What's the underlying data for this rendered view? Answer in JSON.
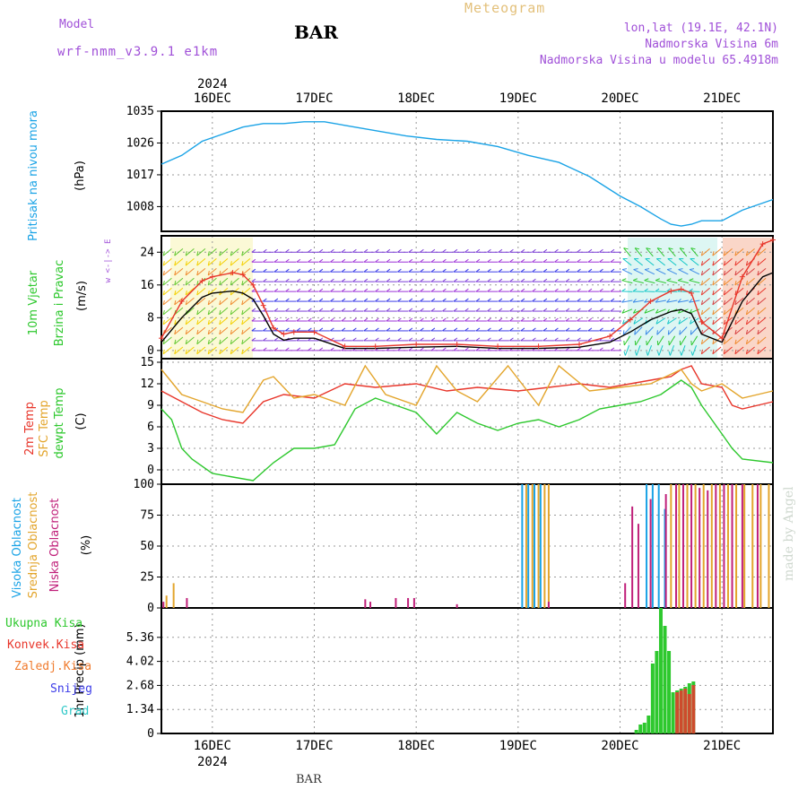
{
  "header": {
    "model_caption": "Model",
    "model_name": "wrf-nmm_v3.9.1 e1km",
    "station": "BAR",
    "title": "Meteogram",
    "lonlat": "lon,lat (19.1E, 42.1N)",
    "elevation": "Nadmorska Visina 6m",
    "model_elevation": "Nadmorska Visina u modelu 65.4918m",
    "credit": "made by Angel",
    "footer_station": "BAR"
  },
  "time_axis": {
    "year": "2024",
    "day_labels": [
      "16DEC",
      "17DEC",
      "18DEC",
      "19DEC",
      "20DEC",
      "21DEC"
    ],
    "day_positions": [
      1,
      2,
      3,
      4,
      5,
      6
    ],
    "xlim": [
      0.5,
      6.5
    ]
  },
  "colors": {
    "pressure": "#1aa3e6",
    "wind_speed": "#000000",
    "wind_gust": "#e8362b",
    "t2m": "#e8362b",
    "tsfc": "#e3a52c",
    "dewpoint": "#2ec82e",
    "cloud_high": "#1aa3e6",
    "cloud_mid": "#e3a52c",
    "cloud_low": "#c0207a",
    "precip_total": "#2ec82e",
    "precip_conv": "#e8362b",
    "precip_strat": "#f07b2e",
    "precip_snow": "#3b3be8",
    "precip_hail": "#2ec8c8",
    "label_pressure": "#1aa3e6",
    "label_wind": "#2ec82e",
    "label_header": "#a050d8",
    "label_title": "#e3c07a"
  },
  "chart_data": [
    {
      "type": "line",
      "panel": "pressure",
      "ylabel_name": "Pritisak na nivou mora",
      "ylabel_unit": "(hPa)",
      "yticks": [
        1008,
        1017,
        1026,
        1035
      ],
      "ylim": [
        1001,
        1035
      ],
      "series": [
        {
          "x": [
            0.5,
            0.7,
            0.9,
            1.1,
            1.3,
            1.5,
            1.7,
            1.9,
            2.1,
            2.3,
            2.6,
            2.9,
            3.2,
            3.5,
            3.8,
            4.1,
            4.4,
            4.7,
            5.0,
            5.2,
            5.4,
            5.5,
            5.6,
            5.7,
            5.8,
            5.9,
            6.0,
            6.1,
            6.2,
            6.3,
            6.5
          ],
          "values": [
            1020.0,
            1022.5,
            1026.5,
            1028.5,
            1030.5,
            1031.5,
            1031.5,
            1032.0,
            1032.0,
            1031.0,
            1029.5,
            1028.0,
            1027.0,
            1026.5,
            1025.0,
            1022.5,
            1020.5,
            1016.5,
            1011.0,
            1008.0,
            1004.5,
            1003.0,
            1002.5,
            1003.0,
            1004.0,
            1004.0,
            1004.0,
            1005.5,
            1007.0,
            1008.0,
            1010.0
          ]
        }
      ]
    },
    {
      "type": "line",
      "panel": "wind",
      "ylabel_name_1": "10m Vjetar",
      "ylabel_name_2": "Brzina i Pravac",
      "ylabel_unit": "(m/s)",
      "compass": "w <-|-> E",
      "yticks": [
        0,
        8,
        16,
        24
      ],
      "ylim": [
        -2,
        28
      ],
      "series": [
        {
          "name": "speed",
          "x": [
            0.5,
            0.7,
            0.9,
            1.0,
            1.2,
            1.3,
            1.4,
            1.5,
            1.6,
            1.7,
            1.8,
            2.0,
            2.3,
            2.6,
            3.0,
            3.4,
            3.8,
            4.2,
            4.6,
            4.9,
            5.1,
            5.3,
            5.5,
            5.6,
            5.7,
            5.8,
            6.0,
            6.2,
            6.4,
            6.5
          ],
          "values": [
            2,
            8,
            13,
            14,
            14.5,
            14,
            12.5,
            8.5,
            4,
            2.5,
            3,
            3,
            0.5,
            0.5,
            0.8,
            1,
            0.5,
            0.5,
            0.8,
            2,
            4.5,
            7.5,
            9.5,
            10,
            9,
            4,
            2,
            12,
            18,
            19
          ]
        },
        {
          "name": "gust",
          "x": [
            0.5,
            0.7,
            0.9,
            1.0,
            1.2,
            1.3,
            1.4,
            1.5,
            1.6,
            1.7,
            1.8,
            2.0,
            2.3,
            2.6,
            3.0,
            3.4,
            3.8,
            4.2,
            4.6,
            4.9,
            5.1,
            5.3,
            5.5,
            5.6,
            5.7,
            5.8,
            6.0,
            6.2,
            6.4,
            6.5
          ],
          "values": [
            3,
            12,
            17,
            18,
            19,
            18.5,
            16,
            11,
            5.5,
            4,
            4.5,
            4.5,
            1,
            1,
            1.5,
            1.5,
            1,
            1,
            1.5,
            3.5,
            7.5,
            12,
            14.5,
            15,
            14,
            7,
            3,
            18,
            26,
            27
          ]
        }
      ]
    },
    {
      "type": "line",
      "panel": "temperature",
      "ylabel_name_1": "2m Temp",
      "ylabel_name_2": "SFC Temp",
      "ylabel_name_3": "dewpt Temp",
      "ylabel_unit": "(C)",
      "yticks": [
        0,
        3,
        6,
        9,
        12,
        15
      ],
      "ylim": [
        -2,
        15.5
      ],
      "series": [
        {
          "name": "2m Temp",
          "x": [
            0.5,
            0.7,
            0.9,
            1.1,
            1.3,
            1.5,
            1.7,
            2.0,
            2.3,
            2.6,
            3.0,
            3.3,
            3.6,
            4.0,
            4.3,
            4.6,
            4.9,
            5.1,
            5.3,
            5.5,
            5.6,
            5.7,
            5.8,
            6.0,
            6.1,
            6.2,
            6.5
          ],
          "values": [
            11,
            9.5,
            8,
            7,
            6.5,
            9.5,
            10.5,
            10,
            12,
            11.5,
            12,
            11,
            11.5,
            11,
            11.5,
            12,
            11.5,
            12,
            12.5,
            13,
            14,
            14.5,
            12,
            11.5,
            9,
            8.5,
            9.5
          ]
        },
        {
          "name": "SFC Temp",
          "x": [
            0.5,
            0.7,
            0.9,
            1.1,
            1.3,
            1.5,
            1.6,
            1.8,
            2.0,
            2.3,
            2.5,
            2.7,
            3.0,
            3.2,
            3.4,
            3.6,
            3.9,
            4.2,
            4.4,
            4.7,
            5.0,
            5.3,
            5.6,
            5.7,
            5.8,
            6.0,
            6.2,
            6.5
          ],
          "values": [
            14,
            10.5,
            9.5,
            8.5,
            8,
            12.5,
            13,
            10,
            10.5,
            9,
            14.5,
            10.5,
            9,
            14.5,
            11,
            9.5,
            14.5,
            9,
            14.5,
            11,
            11.5,
            12,
            14,
            12,
            11,
            12,
            10,
            11
          ]
        },
        {
          "name": "dewpt Temp",
          "x": [
            0.5,
            0.6,
            0.7,
            0.8,
            1.0,
            1.2,
            1.4,
            1.6,
            1.8,
            2.0,
            2.2,
            2.4,
            2.6,
            2.8,
            3.0,
            3.2,
            3.4,
            3.6,
            3.8,
            4.0,
            4.2,
            4.4,
            4.6,
            4.8,
            5.0,
            5.2,
            5.4,
            5.5,
            5.6,
            5.7,
            5.8,
            6.0,
            6.1,
            6.2,
            6.5
          ],
          "values": [
            8.5,
            7,
            3,
            1.5,
            -0.5,
            -1,
            -1.5,
            1,
            3,
            3,
            3.5,
            8.5,
            10,
            9,
            8,
            5,
            8,
            6.5,
            5.5,
            6.5,
            7,
            6,
            7,
            8.5,
            9,
            9.5,
            10.5,
            11.5,
            12.5,
            11.5,
            9,
            5,
            3,
            1.5,
            1
          ]
        }
      ]
    },
    {
      "type": "bar",
      "panel": "cloud",
      "ylabel_name_1": "Visoka Oblacnost",
      "ylabel_name_2": "Srednja Oblacnost",
      "ylabel_name_3": "Niska Oblacnost",
      "ylabel_unit": "(%)",
      "yticks": [
        0,
        25,
        50,
        75,
        100
      ],
      "ylim": [
        0,
        100
      ],
      "series": [
        {
          "name": "high",
          "x": [
            4.04,
            4.1,
            4.16,
            4.22,
            5.26,
            5.32,
            5.38,
            5.44
          ],
          "values": [
            100,
            100,
            100,
            100,
            100,
            100,
            100,
            80
          ]
        },
        {
          "name": "mid",
          "x": [
            0.55,
            0.62,
            4.08,
            4.14,
            4.2,
            4.26,
            4.3,
            5.5,
            5.58,
            5.66,
            5.74,
            5.82,
            5.9,
            5.98,
            6.06,
            6.14,
            6.22,
            6.3,
            6.38,
            6.46
          ],
          "values": [
            10,
            20,
            100,
            100,
            100,
            100,
            100,
            100,
            100,
            100,
            100,
            100,
            100,
            100,
            100,
            100,
            100,
            100,
            100,
            100
          ]
        },
        {
          "name": "low",
          "x": [
            0.52,
            0.75,
            2.5,
            2.55,
            2.8,
            2.92,
            2.98,
            3.4,
            4.3,
            5.05,
            5.12,
            5.18,
            5.3,
            5.45,
            5.55,
            5.62,
            5.7,
            5.78,
            5.86,
            5.94,
            6.02,
            6.1,
            6.2,
            6.35
          ],
          "values": [
            5,
            8,
            7,
            5,
            8,
            8,
            8,
            3,
            5,
            20,
            82,
            68,
            88,
            92,
            100,
            100,
            100,
            97,
            95,
            100,
            100,
            100,
            100,
            100
          ]
        }
      ]
    },
    {
      "type": "bar",
      "panel": "precip",
      "ylabel_unit": "1hr Precip (mm)",
      "legend": [
        "Ukupna Kisa",
        "Konvek.Kisa",
        "Zaledj.Kisa",
        "Snijeg",
        "Grad"
      ],
      "yticks": [
        0,
        1.34,
        2.68,
        4.02,
        5.36
      ],
      "ylim": [
        0,
        7
      ],
      "series": [
        {
          "name": "Ukupna Kisa",
          "x": [
            5.16,
            5.2,
            5.24,
            5.28,
            5.32,
            5.36,
            5.4,
            5.44,
            5.48,
            5.52,
            5.56,
            5.6,
            5.64,
            5.68,
            5.72
          ],
          "values": [
            0.2,
            0.5,
            0.6,
            1.0,
            3.9,
            4.6,
            7.0,
            6.0,
            4.6,
            2.3,
            2.4,
            2.5,
            2.6,
            2.8,
            2.9
          ]
        },
        {
          "name": "Konvek.Kisa",
          "x": [
            5.56,
            5.6,
            5.64,
            5.68,
            5.72
          ],
          "values": [
            2.3,
            2.4,
            2.5,
            2.2,
            2.7
          ]
        }
      ]
    }
  ]
}
